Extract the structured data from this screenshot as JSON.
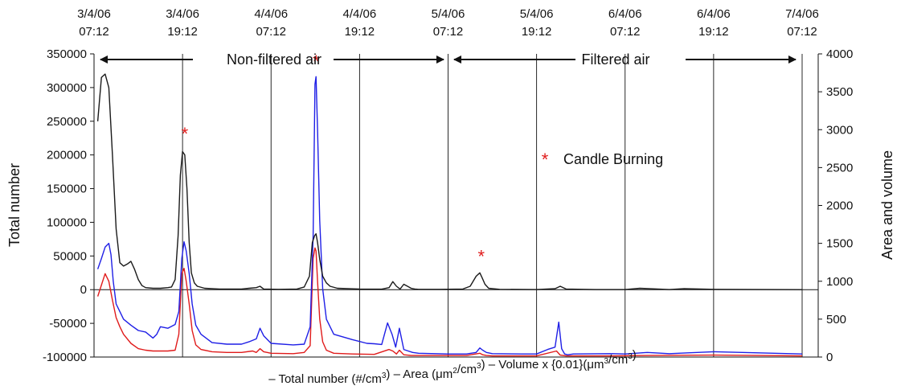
{
  "chart_data": {
    "type": "line",
    "time_labels": [
      [
        "3/4/06",
        "07:12"
      ],
      [
        "3/4/06",
        "19:12"
      ],
      [
        "4/4/06",
        "07:12"
      ],
      [
        "4/4/06",
        "19:12"
      ],
      [
        "5/4/06",
        "07:12"
      ],
      [
        "5/4/06",
        "19:12"
      ],
      [
        "6/4/06",
        "07:12"
      ],
      [
        "6/4/06",
        "19:12"
      ],
      [
        "7/4/06",
        "07:12"
      ]
    ],
    "x_unit": "hours from 3/4/06 07:12",
    "xlim": [
      0,
      96
    ],
    "ylabel": "Total number",
    "ylabel_right": "Area and volume",
    "ylim": [
      -100000,
      350000
    ],
    "yticks": [
      350000,
      300000,
      250000,
      200000,
      150000,
      100000,
      50000,
      0,
      -50000,
      -100000
    ],
    "ylim_right": [
      0,
      4000
    ],
    "yticks_right": [
      4000,
      3500,
      3000,
      2500,
      2000,
      1500,
      1000,
      500,
      0
    ],
    "annotations": {
      "non_filtered": "Non-filtered air",
      "filtered": "Filtered air",
      "candle_marker": "*",
      "candle_legend": "Candle Burning"
    },
    "candle_markers": [
      {
        "x": 12.3,
        "y": 222000
      },
      {
        "x": 30.1,
        "y": 330000
      },
      {
        "x": 52.5,
        "y": 40000
      }
    ],
    "colors": {
      "total": "#1a1a1a",
      "area": "#1f1fe6",
      "volume": "#e01b1b",
      "marker": "#e01b1b"
    },
    "series": [
      {
        "name": "Total number (#/cm3)",
        "axis": "left",
        "x": [
          0.5,
          1.0,
          1.5,
          2.0,
          2.5,
          3.0,
          3.5,
          4.0,
          4.5,
          5.0,
          5.5,
          6.0,
          6.5,
          7.0,
          8.0,
          9.0,
          10.0,
          10.5,
          11.0,
          11.4,
          11.7,
          12.0,
          12.3,
          12.6,
          12.9,
          13.2,
          13.6,
          14.0,
          15.0,
          17.0,
          20.0,
          21.0,
          22.0,
          22.5,
          23.0,
          25.0,
          27.5,
          28.5,
          29.2,
          29.6,
          29.9,
          30.1,
          30.3,
          30.6,
          31.0,
          31.5,
          32.0,
          33.0,
          36.0,
          39.0,
          40.0,
          40.5,
          41.0,
          41.5,
          42.0,
          43.0,
          43.5,
          44.0,
          47.0,
          50.0,
          51.0,
          51.8,
          52.3,
          52.6,
          53.0,
          53.5,
          55.0,
          60.0,
          62.5,
          63.2,
          64.0,
          68.0,
          72.0,
          74.0,
          78.0,
          80.0,
          84.0,
          96.0
        ],
        "y": [
          250000,
          315000,
          320000,
          300000,
          200000,
          90000,
          40000,
          35000,
          38000,
          42000,
          30000,
          15000,
          6000,
          3000,
          2000,
          2000,
          3000,
          4000,
          15000,
          80000,
          170000,
          205000,
          200000,
          150000,
          70000,
          25000,
          10000,
          5000,
          2000,
          1000,
          1000,
          2000,
          3000,
          5000,
          1000,
          500,
          1000,
          4000,
          20000,
          70000,
          80000,
          83000,
          70000,
          45000,
          20000,
          10000,
          5000,
          2000,
          1000,
          800,
          3000,
          12000,
          5000,
          1000,
          8000,
          2000,
          1000,
          500,
          500,
          1000,
          5000,
          20000,
          25000,
          18000,
          8000,
          2000,
          500,
          200,
          1500,
          5000,
          1000,
          200,
          200,
          2000,
          200,
          1500,
          500,
          0
        ]
      },
      {
        "name": "Area (μm2/cm3)",
        "axis": "right",
        "x": [
          0.5,
          1.0,
          1.5,
          2.0,
          2.3,
          2.6,
          3.0,
          3.5,
          4.0,
          5.0,
          6.0,
          7.0,
          8.0,
          8.5,
          9.0,
          10.0,
          11.0,
          11.5,
          11.9,
          12.2,
          12.5,
          12.9,
          13.3,
          13.8,
          14.5,
          16.0,
          18.0,
          20.0,
          21.0,
          22.0,
          22.5,
          23.0,
          24.0,
          27.0,
          28.5,
          29.3,
          29.7,
          29.95,
          30.1,
          30.3,
          30.6,
          31.0,
          31.5,
          32.5,
          35.0,
          37.0,
          38.0,
          39.0,
          39.8,
          40.4,
          40.9,
          41.4,
          42.0,
          42.6,
          43.2,
          44.0,
          48.0,
          50.5,
          51.8,
          52.3,
          52.7,
          53.2,
          54.0,
          58.0,
          60.0,
          61.5,
          62.5,
          63.0,
          63.4,
          63.8,
          64.2,
          65.0,
          70.0,
          72.0,
          75.0,
          78.0,
          84.0,
          96.0
        ],
        "y": [
          1160,
          1300,
          1450,
          1500,
          1350,
          1000,
          700,
          600,
          500,
          420,
          350,
          330,
          250,
          300,
          400,
          380,
          430,
          600,
          1300,
          1520,
          1400,
          1100,
          700,
          420,
          300,
          190,
          170,
          170,
          200,
          240,
          380,
          280,
          180,
          160,
          170,
          400,
          1600,
          3600,
          3700,
          3000,
          1800,
          900,
          500,
          300,
          230,
          180,
          175,
          165,
          450,
          300,
          130,
          380,
          100,
          80,
          60,
          50,
          40,
          40,
          60,
          120,
          90,
          60,
          45,
          40,
          40,
          100,
          130,
          460,
          110,
          40,
          30,
          40,
          45,
          40,
          60,
          45,
          70,
          40
        ]
      },
      {
        "name": "Volume x {0.01}(μm3/cm3)",
        "axis": "right",
        "x": [
          0.5,
          1.0,
          1.5,
          2.0,
          2.5,
          3.0,
          3.5,
          4.0,
          5.0,
          6.0,
          7.0,
          8.0,
          9.0,
          10.0,
          11.0,
          11.5,
          11.9,
          12.2,
          12.5,
          12.9,
          13.3,
          13.8,
          14.5,
          16.0,
          18.0,
          20.0,
          21.5,
          22.0,
          22.5,
          23.0,
          24.0,
          27.0,
          28.5,
          29.3,
          29.7,
          29.95,
          30.1,
          30.3,
          30.6,
          31.0,
          31.5,
          32.5,
          35.0,
          38.0,
          40.0,
          40.5,
          41.0,
          41.4,
          42.0,
          43.0,
          48.0,
          50.5,
          52.3,
          52.7,
          53.2,
          54.0,
          60.0,
          62.7,
          63.2,
          64.0,
          70.0,
          75.0,
          84.0,
          96.0
        ],
        "y": [
          800,
          950,
          1100,
          1000,
          750,
          520,
          400,
          300,
          180,
          110,
          90,
          80,
          80,
          80,
          90,
          300,
          1100,
          1170,
          1000,
          700,
          350,
          160,
          100,
          70,
          60,
          60,
          80,
          60,
          110,
          70,
          50,
          45,
          60,
          150,
          1300,
          1440,
          1400,
          1000,
          500,
          200,
          90,
          50,
          40,
          35,
          100,
          80,
          40,
          90,
          30,
          20,
          20,
          20,
          50,
          30,
          20,
          15,
          15,
          80,
          25,
          15,
          15,
          20,
          25,
          15
        ]
      }
    ]
  }
}
